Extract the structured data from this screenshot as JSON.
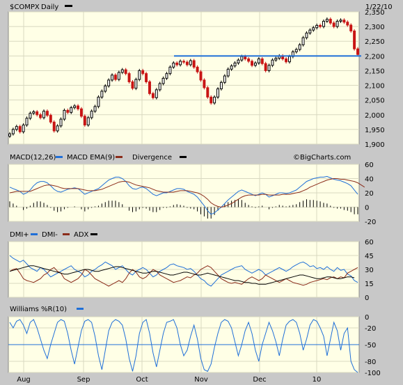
{
  "header": {
    "symbol": "$COMPX",
    "period": "Daily",
    "date": "1/22/10"
  },
  "watermark": "©BigCharts.com",
  "colors": {
    "panel": "#ffffe6",
    "grid": "#d8d8c0",
    "blue": "#1f6fd8",
    "brown": "#8b2c1a",
    "black": "#000000",
    "up": "#000000",
    "down": "#c81414",
    "hline": "#1f6fd8"
  },
  "x_labels": [
    "Aug",
    "Sep",
    "Oct",
    "Nov",
    "Dec",
    "10"
  ],
  "chart_data": [
    {
      "type": "candlestick",
      "title": "$COMPX Daily",
      "ylim": [
        1900,
        2350
      ],
      "y_ticks": [
        "2,350",
        "2,300",
        "2,250",
        "2,200",
        "2,150",
        "2,100",
        "2,050",
        "2,000",
        "1,950",
        "1,900"
      ],
      "horizontal_line": 2200,
      "close": [
        1935,
        1950,
        1960,
        1942,
        1965,
        1988,
        2005,
        2010,
        2000,
        1990,
        2012,
        1998,
        1975,
        1945,
        1962,
        1985,
        2015,
        2008,
        2024,
        2030,
        2020,
        1995,
        1965,
        1990,
        2012,
        2028,
        2060,
        2080,
        2098,
        2118,
        2135,
        2120,
        2144,
        2153,
        2140,
        2112,
        2090,
        2120,
        2150,
        2140,
        2112,
        2072,
        2058,
        2085,
        2106,
        2124,
        2140,
        2162,
        2176,
        2170,
        2182,
        2179,
        2170,
        2184,
        2162,
        2146,
        2118,
        2092,
        2060,
        2040,
        2060,
        2088,
        2110,
        2132,
        2155,
        2166,
        2176,
        2186,
        2198,
        2190,
        2182,
        2168,
        2176,
        2190,
        2174,
        2150,
        2168,
        2186,
        2192,
        2200,
        2190,
        2180,
        2198,
        2214,
        2222,
        2238,
        2262,
        2278,
        2288,
        2296,
        2304,
        2300,
        2318,
        2325,
        2312,
        2300,
        2318,
        2322,
        2315,
        2305,
        2285,
        2224,
        2205
      ]
    },
    {
      "type": "line",
      "title": "MACD(12,26)",
      "ylim": [
        -20,
        60
      ],
      "y_ticks": [
        "60",
        "40",
        "20",
        "0",
        "-20"
      ],
      "series": [
        {
          "name": "MACD",
          "color": "blue",
          "values": [
            28,
            26,
            24,
            22,
            18,
            20,
            24,
            30,
            34,
            36,
            36,
            34,
            30,
            25,
            22,
            21,
            23,
            25,
            26,
            27,
            26,
            22,
            18,
            20,
            22,
            24,
            26,
            30,
            34,
            38,
            40,
            42,
            42,
            40,
            36,
            30,
            26,
            25,
            27,
            28,
            26,
            22,
            18,
            16,
            18,
            20,
            20,
            22,
            24,
            26,
            26,
            25,
            22,
            20,
            18,
            14,
            8,
            2,
            -5,
            -10,
            -8,
            -4,
            0,
            5,
            10,
            14,
            18,
            22,
            24,
            22,
            20,
            18,
            16,
            18,
            20,
            18,
            14,
            16,
            18,
            20,
            20,
            19,
            20,
            22,
            24,
            28,
            32,
            36,
            38,
            40,
            41,
            42,
            42,
            43,
            41,
            39,
            38,
            37,
            35,
            33,
            30,
            24,
            18
          ]
        },
        {
          "name": "MACD EMA(9)",
          "color": "brown",
          "values": [
            20,
            21,
            22,
            22,
            22,
            22,
            22,
            24,
            26,
            28,
            30,
            31,
            31,
            30,
            29,
            27,
            26,
            26,
            26,
            26,
            26,
            25,
            24,
            23,
            23,
            23,
            24,
            25,
            27,
            29,
            31,
            33,
            35,
            36,
            36,
            35,
            33,
            31,
            30,
            29,
            28,
            27,
            25,
            23,
            22,
            21,
            21,
            21,
            21,
            22,
            23,
            23,
            23,
            22,
            21,
            20,
            18,
            15,
            11,
            6,
            3,
            1,
            0,
            1,
            3,
            5,
            8,
            11,
            14,
            16,
            17,
            17,
            17,
            17,
            18,
            18,
            17,
            17,
            17,
            17,
            18,
            18,
            18,
            19,
            20,
            21,
            23,
            25,
            28,
            30,
            32,
            34,
            36,
            38,
            39,
            40,
            40,
            39,
            39,
            38,
            37,
            36,
            34,
            31,
            28
          ]
        }
      ],
      "bars": {
        "name": "Divergence",
        "color": "black",
        "values": [
          8,
          5,
          2,
          0,
          -4,
          -2,
          2,
          6,
          8,
          8,
          6,
          3,
          -1,
          -5,
          -7,
          -6,
          -3,
          -1,
          0,
          1,
          0,
          -3,
          -6,
          -3,
          -1,
          1,
          2,
          5,
          7,
          9,
          9,
          9,
          7,
          4,
          0,
          -5,
          -7,
          -6,
          -3,
          -1,
          -2,
          -5,
          -7,
          -7,
          -4,
          -1,
          -1,
          1,
          3,
          4,
          3,
          2,
          -1,
          -2,
          -3,
          -6,
          -10,
          -13,
          -16,
          -16,
          -11,
          -5,
          0,
          4,
          7,
          9,
          10,
          11,
          10,
          6,
          3,
          1,
          -1,
          1,
          2,
          0,
          -3,
          -1,
          1,
          3,
          2,
          1,
          2,
          3,
          4,
          7,
          9,
          11,
          10,
          10,
          9,
          8,
          6,
          5,
          2,
          -1,
          -2,
          -2,
          -4,
          -5,
          -7,
          -10,
          -10
        ]
      }
    },
    {
      "type": "line",
      "title": "DMI+ / DMI- / ADX",
      "ylim": [
        0,
        60
      ],
      "y_ticks": [
        "60",
        "45",
        "30",
        "15",
        "0"
      ],
      "series": [
        {
          "name": "DMI+",
          "color": "blue",
          "values": [
            45,
            42,
            40,
            38,
            40,
            36,
            32,
            30,
            28,
            32,
            30,
            26,
            22,
            24,
            26,
            28,
            30,
            32,
            34,
            30,
            28,
            26,
            22,
            24,
            28,
            30,
            33,
            35,
            38,
            36,
            34,
            30,
            32,
            34,
            30,
            26,
            24,
            28,
            30,
            32,
            30,
            26,
            22,
            24,
            28,
            30,
            32,
            35,
            36,
            34,
            33,
            32,
            30,
            31,
            28,
            24,
            20,
            18,
            14,
            12,
            16,
            20,
            24,
            26,
            28,
            30,
            32,
            33,
            34,
            30,
            28,
            26,
            28,
            30,
            28,
            24,
            26,
            28,
            30,
            32,
            30,
            28,
            30,
            33,
            35,
            37,
            38,
            36,
            33,
            34,
            31,
            32,
            30,
            33,
            30,
            28,
            32,
            29,
            30,
            25,
            23,
            18,
            16
          ]
        },
        {
          "name": "DMI-",
          "color": "brown",
          "values": [
            28,
            30,
            31,
            26,
            20,
            18,
            17,
            16,
            18,
            20,
            24,
            26,
            30,
            32,
            28,
            26,
            20,
            18,
            16,
            18,
            20,
            24,
            30,
            28,
            24,
            20,
            18,
            16,
            14,
            12,
            14,
            16,
            18,
            16,
            20,
            26,
            30,
            27,
            22,
            20,
            22,
            26,
            30,
            28,
            24,
            22,
            20,
            18,
            16,
            17,
            18,
            20,
            22,
            21,
            24,
            26,
            30,
            32,
            34,
            32,
            28,
            24,
            20,
            18,
            16,
            15,
            16,
            15,
            14,
            17,
            20,
            22,
            20,
            18,
            20,
            24,
            22,
            20,
            18,
            16,
            18,
            20,
            18,
            16,
            15,
            14,
            13,
            14,
            16,
            17,
            18,
            19,
            20,
            19,
            21,
            22,
            20,
            22,
            21,
            26,
            28,
            30,
            32
          ]
        },
        {
          "name": "ADX",
          "color": "black",
          "values": [
            28,
            29,
            30,
            31,
            32,
            33,
            34,
            34,
            33,
            32,
            31,
            30,
            29,
            28,
            27,
            26,
            25,
            25,
            26,
            27,
            28,
            29,
            30,
            30,
            29,
            28,
            28,
            29,
            30,
            31,
            32,
            33,
            33,
            32,
            31,
            30,
            29,
            28,
            27,
            26,
            26,
            27,
            28,
            28,
            27,
            26,
            25,
            24,
            24,
            25,
            26,
            27,
            27,
            26,
            25,
            24,
            24,
            25,
            26,
            25,
            24,
            23,
            22,
            21,
            20,
            19,
            18,
            18,
            17,
            16,
            16,
            15,
            15,
            14,
            14,
            14,
            15,
            16,
            17,
            18,
            19,
            20,
            21,
            22,
            23,
            24,
            24,
            23,
            22,
            21,
            20,
            20,
            21,
            22,
            22,
            21,
            20,
            20,
            21,
            22,
            22,
            21
          ]
        }
      ]
    },
    {
      "type": "line",
      "title": "Williams %R(10)",
      "ylim": [
        -100,
        0
      ],
      "y_ticks": [
        "0",
        "-20",
        "-50",
        "-80",
        "-100"
      ],
      "hline": -50,
      "series": [
        {
          "name": "Williams %R",
          "color": "blue",
          "values": [
            -10,
            -20,
            -8,
            -5,
            -15,
            -30,
            -10,
            -5,
            -20,
            -40,
            -60,
            -75,
            -50,
            -30,
            -10,
            -5,
            -8,
            -30,
            -60,
            -85,
            -55,
            -25,
            -8,
            -5,
            -10,
            -35,
            -70,
            -95,
            -60,
            -25,
            -10,
            -5,
            -8,
            -15,
            -40,
            -75,
            -98,
            -70,
            -30,
            -10,
            -5,
            -30,
            -65,
            -90,
            -60,
            -30,
            -10,
            -8,
            -5,
            -20,
            -50,
            -70,
            -60,
            -35,
            -15,
            -40,
            -75,
            -95,
            -98,
            -85,
            -55,
            -30,
            -10,
            -5,
            -8,
            -20,
            -45,
            -70,
            -50,
            -25,
            -10,
            -30,
            -60,
            -80,
            -50,
            -30,
            -10,
            -25,
            -45,
            -70,
            -40,
            -15,
            -8,
            -5,
            -10,
            -30,
            -60,
            -40,
            -15,
            -5,
            -8,
            -20,
            -35,
            -70,
            -40,
            -10,
            -25,
            -60,
            -30,
            -20,
            -80,
            -95,
            -100
          ]
        }
      ]
    }
  ]
}
